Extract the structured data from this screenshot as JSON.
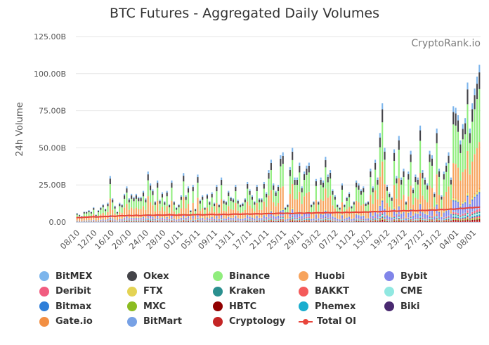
{
  "chart_data": {
    "type": "bar",
    "title": "BTC Futures - Aggregated Daily Volumes",
    "watermark": "CryptoRank.io",
    "ylabel": "24h Volume",
    "ylim": [
      0,
      125
    ],
    "y_unit": "B",
    "yticks": [
      "0.00",
      "25.00B",
      "50.00B",
      "75.00B",
      "100.00B",
      "125.00B"
    ],
    "x_tick_labels": [
      "08/10",
      "12/10",
      "16/10",
      "20/10",
      "24/10",
      "28/10",
      "01/11",
      "05/11",
      "09/11",
      "13/11",
      "17/11",
      "21/11",
      "25/11",
      "29/11",
      "03/12",
      "07/12",
      "11/12",
      "15/12",
      "19/12",
      "23/12",
      "27/12",
      "31/12",
      "04/01",
      "08/01"
    ],
    "stack_order": [
      "Cryptology",
      "HBTC",
      "MXC",
      "BAKKT",
      "Biki",
      "Phemex",
      "CME",
      "Kraken",
      "Deribit",
      "BitMart",
      "Bybit",
      "Bitmax",
      "FTX",
      "Gate.io",
      "Huobi",
      "Binance",
      "Okex",
      "BitMEX"
    ],
    "totals": [
      6,
      5,
      4,
      7,
      7,
      8,
      7,
      10,
      5,
      8,
      10,
      12,
      9,
      13,
      31,
      16,
      11,
      7,
      13,
      12,
      19,
      24,
      16,
      19,
      17,
      19,
      17,
      17,
      21,
      16,
      34,
      26,
      22,
      14,
      28,
      15,
      20,
      14,
      21,
      12,
      28,
      14,
      10,
      12,
      18,
      33,
      18,
      24,
      8,
      25,
      9,
      32,
      15,
      18,
      10,
      19,
      14,
      20,
      13,
      25,
      12,
      30,
      15,
      14,
      21,
      17,
      16,
      25,
      15,
      12,
      13,
      16,
      27,
      22,
      18,
      14,
      25,
      16,
      16,
      27,
      20,
      35,
      42,
      26,
      21,
      25,
      45,
      47,
      10,
      12,
      37,
      50,
      30,
      30,
      40,
      24,
      34,
      38,
      40,
      12,
      14,
      29,
      14,
      30,
      28,
      44,
      32,
      35,
      22,
      18,
      12,
      10,
      26,
      12,
      17,
      20,
      11,
      14,
      28,
      26,
      22,
      24,
      13,
      14,
      36,
      24,
      42,
      30,
      60,
      80,
      50,
      25,
      20,
      17,
      49,
      31,
      58,
      30,
      36,
      14,
      34,
      48,
      23,
      32,
      30,
      65,
      35,
      30,
      26,
      48,
      45,
      20,
      63,
      36,
      18,
      34,
      40,
      47,
      30,
      78,
      77,
      72,
      55,
      66,
      70,
      94,
      63,
      80,
      90,
      98,
      106
    ],
    "totals_unit": "B",
    "total_oi": [
      3.0,
      3.1,
      2.9,
      3.3,
      3.2,
      3.4,
      3.5,
      3.6,
      3.4,
      3.5,
      3.6,
      3.7,
      3.8,
      3.7,
      3.9,
      4.0,
      3.8,
      4.1,
      4.2,
      4.3,
      4.2,
      4.3,
      4.5,
      4.3,
      4.4,
      4.6,
      4.4,
      4.3,
      4.5,
      4.6,
      4.7,
      4.6,
      4.5,
      4.6,
      4.8,
      4.7,
      4.6,
      4.7,
      4.8,
      4.9,
      4.8,
      4.7,
      4.6,
      4.7,
      4.8,
      4.9,
      4.8,
      4.7,
      4.8,
      4.9,
      5.0,
      5.1,
      4.9,
      4.8,
      4.9,
      5.0,
      5.1,
      5.2,
      5.0,
      4.9,
      5.0,
      5.1,
      5.2,
      5.1,
      5.0,
      5.2,
      5.3,
      5.4,
      5.3,
      5.2,
      5.3,
      5.4,
      5.5,
      5.3,
      5.4,
      5.5,
      5.6,
      5.5,
      5.4,
      5.6,
      5.7,
      5.8,
      5.7,
      5.6,
      5.8,
      5.9,
      6.0,
      5.8,
      5.9,
      6.0,
      5.8,
      5.7,
      5.9,
      6.0,
      6.1,
      6.0,
      5.9,
      6.1,
      6.2,
      6.0,
      6.1,
      6.2,
      6.3,
      6.1,
      6.2,
      6.3,
      6.4,
      6.2,
      6.3,
      6.4,
      6.5,
      6.4,
      6.3,
      6.5,
      6.6,
      6.4,
      6.5,
      6.6,
      6.7,
      6.5,
      6.6,
      6.7,
      6.8,
      6.7,
      6.9,
      7.0,
      7.1,
      6.9,
      7.0,
      7.2,
      7.3,
      7.1,
      7.2,
      7.4,
      7.5,
      7.3,
      7.4,
      7.5,
      7.7,
      7.6,
      7.5,
      7.7,
      7.8,
      7.6,
      7.7,
      7.8,
      7.9,
      7.8,
      7.9,
      8.0,
      8.2,
      8.0,
      8.1,
      8.3,
      8.5,
      8.3,
      8.4,
      8.6,
      8.8,
      8.6,
      8.8,
      9.0,
      9.3,
      9.1,
      9.3,
      9.5,
      9.7,
      9.6,
      9.8,
      9.9,
      10.0
    ],
    "total_oi_unit": "B",
    "legend": [
      {
        "name": "BitMEX",
        "color": "#7cb5ec",
        "kind": "dot"
      },
      {
        "name": "Okex",
        "color": "#434348",
        "kind": "dot"
      },
      {
        "name": "Binance",
        "color": "#90ed7d",
        "kind": "dot"
      },
      {
        "name": "Huobi",
        "color": "#f7a35c",
        "kind": "dot"
      },
      {
        "name": "Bybit",
        "color": "#8085e9",
        "kind": "dot"
      },
      {
        "name": "Deribit",
        "color": "#f15c80",
        "kind": "dot"
      },
      {
        "name": "FTX",
        "color": "#e4d354",
        "kind": "dot"
      },
      {
        "name": "Kraken",
        "color": "#2b908f",
        "kind": "dot"
      },
      {
        "name": "BAKKT",
        "color": "#f45b5b",
        "kind": "dot"
      },
      {
        "name": "CME",
        "color": "#91e8e1",
        "kind": "dot"
      },
      {
        "name": "Bitmax",
        "color": "#2f7ed8",
        "kind": "dot"
      },
      {
        "name": "MXC",
        "color": "#8bbc21",
        "kind": "dot"
      },
      {
        "name": "HBTC",
        "color": "#910000",
        "kind": "dot"
      },
      {
        "name": "Phemex",
        "color": "#1aadce",
        "kind": "dot"
      },
      {
        "name": "Biki",
        "color": "#492970",
        "kind": "dot"
      },
      {
        "name": "Gate.io",
        "color": "#f28f43",
        "kind": "dot"
      },
      {
        "name": "BitMart",
        "color": "#77a1e5",
        "kind": "dot"
      },
      {
        "name": "Cryptology",
        "color": "#c42525",
        "kind": "dot"
      },
      {
        "name": "Total OI",
        "color": "#e8453c",
        "kind": "line"
      }
    ],
    "legend_placement": "bottom",
    "grid": true
  }
}
